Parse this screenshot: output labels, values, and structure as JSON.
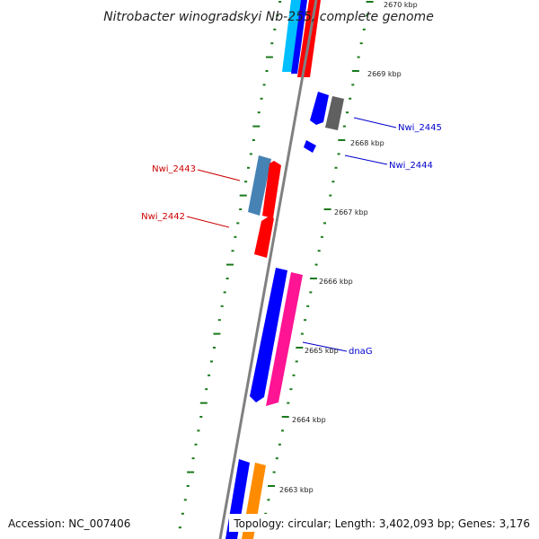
{
  "title": "Nitrobacter winogradskyi Nb-255, complete genome",
  "footer": {
    "accession": "Accession: NC_007406",
    "topology": "Topology: circular; Length: 3,402,093 bp; Genes: 3,176"
  },
  "kbp_labels": [
    "2670 kbp",
    "2669 kbp",
    "2668 kbp",
    "2667 kbp",
    "2666 kbp",
    "2665 kbp",
    "2664 kbp",
    "2663 kbp"
  ],
  "gene_labels": {
    "nwi_2445": "Nwi_2445",
    "nwi_2444": "Nwi_2444",
    "nwi_2443": "Nwi_2443",
    "nwi_2442": "Nwi_2442",
    "dnag": "dnaG"
  },
  "colors": {
    "backbone": "#808080",
    "tick": "#1a7a1a",
    "red": "#ff0000",
    "blue": "#0000ff",
    "dark_gray": "#606060",
    "steel_blue": "#4682b4",
    "pink": "#ff1493",
    "orange": "#ff8c00",
    "cyan": "#00bfff",
    "label_red": "#cc0000",
    "label_blue": "#0000cc"
  }
}
